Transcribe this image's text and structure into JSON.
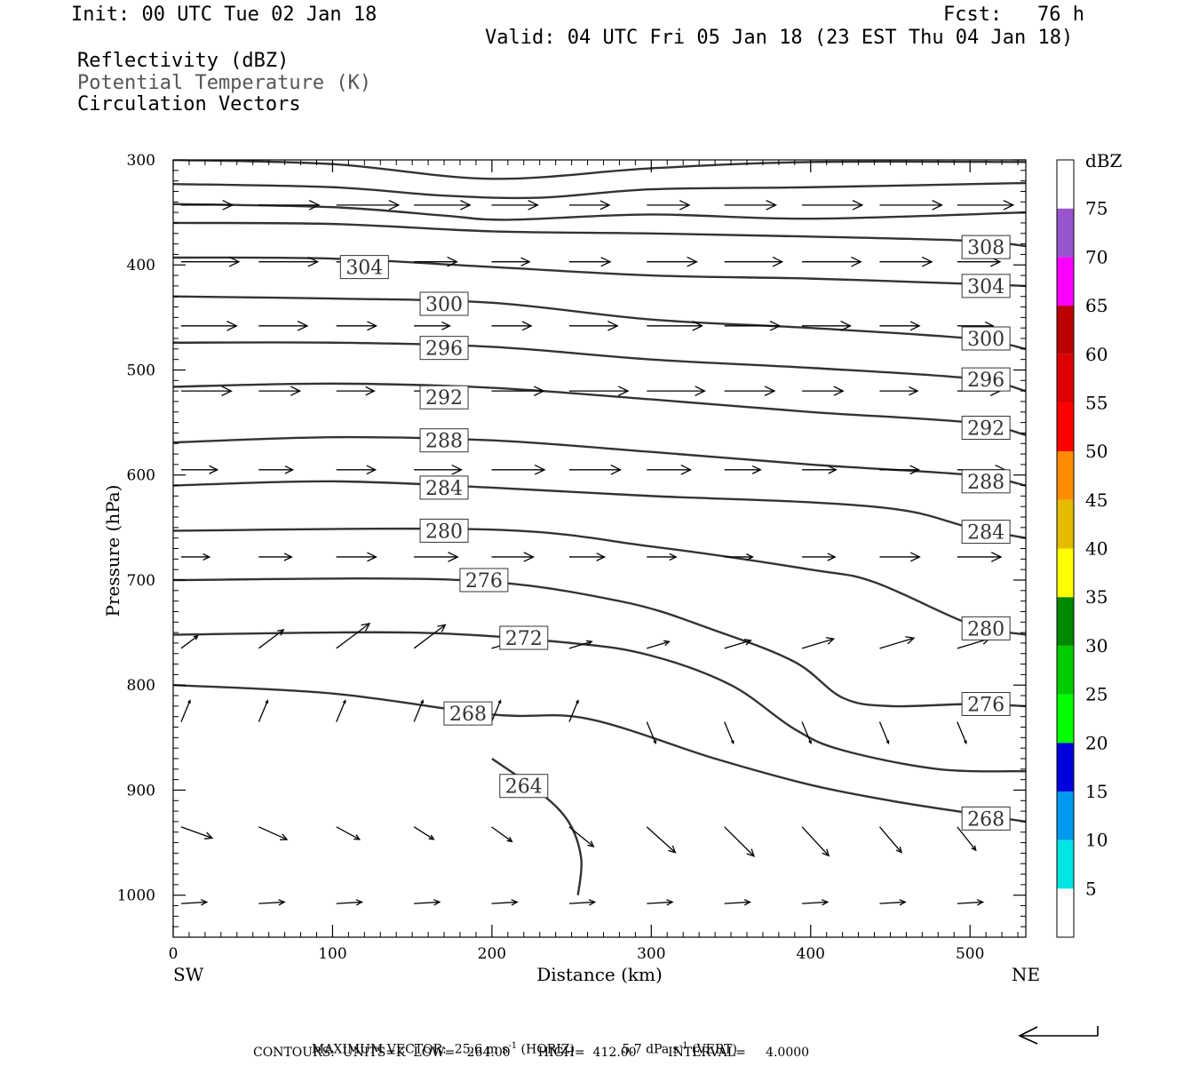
{
  "header": {
    "init": "Init: 00 UTC Tue 02 Jan 18",
    "fcst": "Fcst:   76 h",
    "valid": "Valid: 04 UTC Fri 05 Jan 18 (23 EST Thu 04 Jan 18)",
    "field1": "Reflectivity (dBZ)",
    "field2": "Potential Temperature (K)",
    "field3": "Circulation Vectors"
  },
  "footer": {
    "max_vector_label": "MAXIMUM VECTOR:",
    "max_horiz": "25.6 m s",
    "horiz_tag": "(HORIZ)",
    "max_vert": "5.7 dPa s",
    "vert_tag": "(VERT)",
    "exp": "-1",
    "contours": "CONTOURS:  UNITS=K  LOW=   264.00       HIGH=  412.00        INTERVAL=     4.0000"
  },
  "colorbar": {
    "title": "dBZ",
    "levels": [
      5,
      10,
      15,
      20,
      25,
      30,
      35,
      40,
      45,
      50,
      55,
      60,
      65,
      70,
      75
    ],
    "colors": [
      "#00e5e5",
      "#0099ee",
      "#0000dd",
      "#00ff00",
      "#00cc00",
      "#008800",
      "#ffff00",
      "#e5bb00",
      "#ff8c00",
      "#ff0000",
      "#dd0000",
      "#bb0000",
      "#ff00ff",
      "#9955cc",
      "#ffffff"
    ]
  },
  "chart_data": {
    "type": "line",
    "title": "",
    "xlabel": "Distance (km)",
    "ylabel": "Pressure (hPa)",
    "xlim": [
      0,
      535
    ],
    "ylim": [
      1040,
      300
    ],
    "x_ticks": [
      0,
      100,
      200,
      300,
      400,
      500
    ],
    "y_ticks": [
      300,
      400,
      500,
      600,
      700,
      800,
      900,
      1000
    ],
    "x_endpoints": {
      "left": "SW",
      "right": "NE"
    },
    "contour_units": "K",
    "contours": [
      {
        "theta": 264,
        "points": [
          [
            200,
            870
          ],
          [
            230,
            902
          ],
          [
            248,
            930
          ],
          [
            256,
            965
          ],
          [
            254,
            1000
          ]
        ],
        "labels": [
          [
            220,
            896
          ]
        ]
      },
      {
        "theta": 268,
        "points": [
          [
            0,
            800
          ],
          [
            100,
            808
          ],
          [
            200,
            828
          ],
          [
            260,
            832
          ],
          [
            340,
            870
          ],
          [
            400,
            895
          ],
          [
            450,
            910
          ],
          [
            500,
            922
          ],
          [
            535,
            930
          ]
        ],
        "labels": [
          [
            185,
            827
          ],
          [
            510,
            927
          ]
        ]
      },
      {
        "theta": 272,
        "points": [
          [
            0,
            752
          ],
          [
            150,
            750
          ],
          [
            250,
            760
          ],
          [
            300,
            772
          ],
          [
            350,
            800
          ],
          [
            390,
            842
          ],
          [
            420,
            862
          ],
          [
            480,
            880
          ],
          [
            535,
            882
          ]
        ],
        "labels": [
          [
            220,
            755
          ]
        ]
      },
      {
        "theta": 276,
        "points": [
          [
            0,
            700
          ],
          [
            180,
            700
          ],
          [
            280,
            720
          ],
          [
            340,
            748
          ],
          [
            390,
            778
          ],
          [
            420,
            812
          ],
          [
            450,
            820
          ],
          [
            500,
            818
          ],
          [
            535,
            820
          ]
        ],
        "labels": [
          [
            195,
            700
          ],
          [
            510,
            818
          ]
        ]
      },
      {
        "theta": 280,
        "points": [
          [
            0,
            653
          ],
          [
            200,
            652
          ],
          [
            300,
            668
          ],
          [
            400,
            690
          ],
          [
            440,
            702
          ],
          [
            500,
            742
          ],
          [
            535,
            752
          ]
        ],
        "labels": [
          [
            170,
            653
          ],
          [
            510,
            746
          ]
        ]
      },
      {
        "theta": 284,
        "points": [
          [
            0,
            610
          ],
          [
            100,
            606
          ],
          [
            200,
            612
          ],
          [
            300,
            620
          ],
          [
            400,
            626
          ],
          [
            460,
            634
          ],
          [
            500,
            650
          ],
          [
            535,
            660
          ]
        ],
        "labels": [
          [
            170,
            612
          ],
          [
            510,
            654
          ]
        ]
      },
      {
        "theta": 288,
        "points": [
          [
            0,
            569
          ],
          [
            100,
            564
          ],
          [
            200,
            567
          ],
          [
            300,
            578
          ],
          [
            400,
            590
          ],
          [
            500,
            600
          ],
          [
            535,
            610
          ]
        ],
        "labels": [
          [
            170,
            567
          ],
          [
            510,
            606
          ]
        ]
      },
      {
        "theta": 292,
        "points": [
          [
            0,
            516
          ],
          [
            100,
            513
          ],
          [
            200,
            517
          ],
          [
            300,
            528
          ],
          [
            400,
            540
          ],
          [
            500,
            550
          ],
          [
            535,
            562
          ]
        ],
        "labels": [
          [
            170,
            526
          ],
          [
            510,
            555
          ]
        ]
      },
      {
        "theta": 296,
        "points": [
          [
            0,
            474
          ],
          [
            100,
            474
          ],
          [
            200,
            478
          ],
          [
            300,
            490
          ],
          [
            400,
            498
          ],
          [
            500,
            508
          ],
          [
            535,
            520
          ]
        ],
        "labels": [
          [
            170,
            479
          ],
          [
            510,
            509
          ]
        ]
      },
      {
        "theta": 300,
        "points": [
          [
            0,
            430
          ],
          [
            100,
            432
          ],
          [
            200,
            436
          ],
          [
            300,
            452
          ],
          [
            400,
            460
          ],
          [
            500,
            470
          ],
          [
            535,
            480
          ]
        ],
        "labels": [
          [
            170,
            437
          ],
          [
            510,
            470
          ]
        ]
      },
      {
        "theta": 304,
        "points": [
          [
            0,
            393
          ],
          [
            100,
            394
          ],
          [
            200,
            402
          ],
          [
            300,
            410
          ],
          [
            400,
            413
          ],
          [
            500,
            418
          ],
          [
            535,
            420
          ]
        ],
        "labels": [
          [
            120,
            402
          ],
          [
            510,
            420
          ]
        ]
      },
      {
        "theta": 308,
        "points": [
          [
            0,
            360
          ],
          [
            100,
            361
          ],
          [
            200,
            368
          ],
          [
            300,
            370
          ],
          [
            400,
            373
          ],
          [
            500,
            377
          ],
          [
            535,
            382
          ]
        ],
        "labels": [
          [
            510,
            383
          ]
        ]
      }
    ],
    "upper_lines": [
      {
        "points": [
          [
            0,
            300
          ],
          [
            100,
            304
          ],
          [
            200,
            318
          ],
          [
            300,
            308
          ],
          [
            400,
            302
          ],
          [
            535,
            302
          ]
        ]
      },
      {
        "points": [
          [
            0,
            323
          ],
          [
            100,
            326
          ],
          [
            170,
            334
          ],
          [
            230,
            336
          ],
          [
            300,
            328
          ],
          [
            400,
            326
          ],
          [
            535,
            322
          ]
        ]
      },
      {
        "points": [
          [
            0,
            342
          ],
          [
            100,
            345
          ],
          [
            170,
            353
          ],
          [
            210,
            357
          ],
          [
            300,
            352
          ],
          [
            400,
            356
          ],
          [
            535,
            350
          ]
        ]
      }
    ],
    "vector_scale_labels": {
      "max_horizontal": "25.6 m s-1",
      "max_vertical": "5.7 dPa s-1"
    }
  }
}
